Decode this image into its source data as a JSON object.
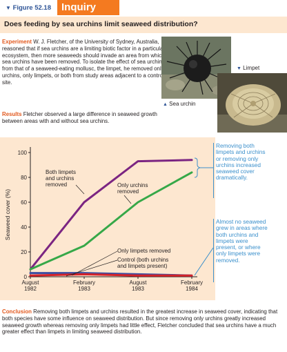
{
  "header": {
    "figure_label": "Figure 52.18",
    "inquiry_label": "Inquiry"
  },
  "question": "Does feeding by sea urchins limit seaweed distribution?",
  "experiment": {
    "heading": "Experiment",
    "text": "W. J. Fletcher, of the University of Sydney, Australia, reasoned that if sea urchins are a limiting biotic factor in a particular ecosystem, then more seaweeds should invade an area from which sea urchins have been removed. To isolate the effect of sea urchins from that of a seaweed-eating mollusc, the limpet, he removed only urchins, only limpets, or both from study areas adjacent to a control site."
  },
  "photos": {
    "urchin_label": "Sea urchin",
    "limpet_label": "Limpet"
  },
  "results": {
    "heading": "Results",
    "text": "Fletcher observed a large difference in seaweed growth between areas with and without sea urchins."
  },
  "colors": {
    "accent": "#f47a20",
    "panel": "#fde7d0",
    "blue": "#3a8fcb",
    "both": "#7b2582",
    "urchins": "#36a848",
    "limpets": "#3c4ea1",
    "control": "#d3232a"
  },
  "chart_data": {
    "type": "line",
    "ylabel": "Seaweed cover (%)",
    "ylim": [
      0,
      100
    ],
    "yticks": [
      0,
      20,
      40,
      60,
      80,
      100
    ],
    "x": [
      {
        "label": [
          "August",
          "1982"
        ]
      },
      {
        "label": [
          "February",
          "1983"
        ]
      },
      {
        "label": [
          "August",
          "1983"
        ]
      },
      {
        "label": [
          "February",
          "1984"
        ]
      }
    ],
    "series": [
      {
        "name": "Both limpets and urchins removed",
        "color": "#7b2582",
        "values": [
          6,
          60,
          93,
          94
        ]
      },
      {
        "name": "Only urchins removed",
        "color": "#36a848",
        "values": [
          6,
          25,
          60,
          84
        ]
      },
      {
        "name": "Only limpets removed",
        "color": "#3c4ea1",
        "values": [
          3,
          3,
          2,
          1
        ]
      },
      {
        "name": "Control (both urchins and limpets present)",
        "color": "#d3232a",
        "values": [
          1,
          2,
          1,
          1
        ]
      }
    ],
    "labels": {
      "both": [
        "Both limpets",
        "and urchins",
        "removed"
      ],
      "urchins": [
        "Only urchins",
        "removed"
      ],
      "limpets": [
        "Only limpets removed"
      ],
      "control": [
        "Control (both urchins",
        "and limpets present)"
      ]
    }
  },
  "callouts": {
    "top": "Removing both limpets and urchins or removing only urchins increased seaweed cover dramatically.",
    "bottom": "Almost no seaweed grew in areas where both urchins and limpets were present, or where only limpets were removed."
  },
  "conclusion": {
    "heading": "Conclusion",
    "text": "Removing both limpets and urchins resulted in the greatest increase in seaweed cover, indicating that both species have some influence on seaweed distribution. But since removing only urchins greatly increased seaweed growth whereas removing only limpets had little effect, Fletcher concluded that sea urchins have a much greater effect than limpets in limiting seaweed distribution."
  }
}
